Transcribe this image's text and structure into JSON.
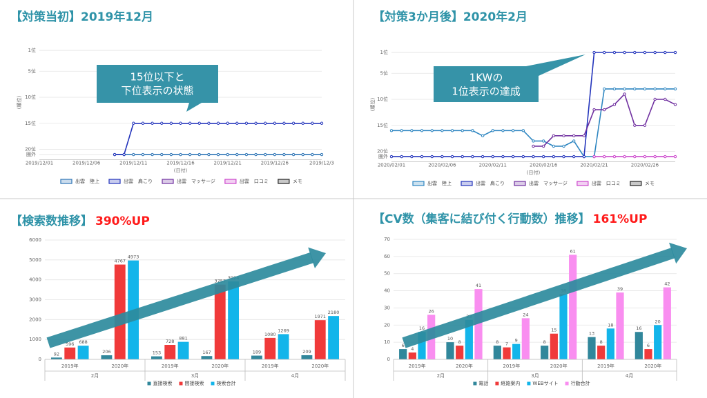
{
  "chart_data": [
    {
      "type": "line",
      "title": "【対策当初】2019年12月",
      "y_inverted": true,
      "ylabel": "(順位)",
      "xlabel": "(日付)",
      "annotation": [
        "15位以下と",
        "下位表示の状態"
      ],
      "categories": [
        "2019/12/01",
        null,
        null,
        null,
        null,
        "2019/12/06",
        null,
        null,
        null,
        null,
        "2019/12/11",
        null,
        null,
        null,
        null,
        "2019/12/16",
        null,
        null,
        null,
        null,
        "2019/12/21",
        null,
        null,
        null,
        null,
        "2019/12/26",
        null,
        null,
        null,
        null,
        "2019/12/3"
      ],
      "series": [
        {
          "name": "出雲　陸上",
          "color": "#2e75b6",
          "values": [
            null,
            null,
            null,
            null,
            null,
            null,
            null,
            null,
            21,
            21,
            21,
            21,
            21,
            21,
            21,
            21,
            21,
            21,
            21,
            21,
            21,
            21,
            21,
            21,
            21,
            21,
            21,
            21,
            21,
            21,
            21
          ]
        },
        {
          "name": "出雲　肩こり",
          "color": "#2233bb",
          "values": [
            null,
            null,
            null,
            null,
            null,
            null,
            null,
            null,
            21,
            21,
            15,
            15,
            15,
            15,
            15,
            15,
            15,
            15,
            15,
            15,
            15,
            15,
            15,
            15,
            15,
            15,
            15,
            15,
            15,
            15,
            15
          ]
        },
        {
          "name": "出雲　マッサージ",
          "color": "#7030a0",
          "values": [
            null,
            null,
            null,
            null,
            null,
            null,
            null,
            null,
            null,
            null,
            null,
            null,
            null,
            null,
            null,
            null,
            null,
            null,
            null,
            null,
            null,
            null,
            null,
            null,
            null,
            null,
            null,
            null,
            null,
            null,
            null
          ]
        },
        {
          "name": "出雲　口コミ",
          "color": "#cc44cc",
          "values": [
            null,
            null,
            null,
            null,
            null,
            null,
            null,
            null,
            null,
            null,
            null,
            null,
            null,
            null,
            null,
            null,
            null,
            null,
            null,
            null,
            null,
            null,
            null,
            null,
            null,
            null,
            null,
            null,
            null,
            null,
            null
          ]
        },
        {
          "name": "メモ",
          "color": "#222222",
          "values": [
            null,
            null,
            null,
            null,
            null,
            null,
            null,
            null,
            null,
            null,
            null,
            null,
            null,
            null,
            null,
            null,
            null,
            null,
            null,
            null,
            null,
            null,
            null,
            null,
            null,
            null,
            null,
            null,
            null,
            null,
            null
          ]
        }
      ],
      "ylim": [
        0,
        22
      ],
      "yticks": [
        {
          "value": 1,
          "label": "1位"
        },
        {
          "value": 5,
          "label": "5位"
        },
        {
          "value": 10,
          "label": "10位"
        },
        {
          "value": 15,
          "label": "15位"
        },
        {
          "value": 20,
          "label": "20位"
        },
        {
          "value": 21,
          "label": "圏外"
        }
      ],
      "grid": true
    },
    {
      "type": "line",
      "title": "【対策3か月後】2020年2月",
      "y_inverted": true,
      "ylabel": "(順位)",
      "xlabel": "(日付)",
      "annotation": [
        "1KWの",
        "1位表示の達成"
      ],
      "categories": [
        "2020/02/01",
        null,
        null,
        null,
        null,
        "2020/02/06",
        null,
        null,
        null,
        null,
        "2020/02/11",
        null,
        null,
        null,
        null,
        "2020/02/16",
        null,
        null,
        null,
        null,
        "2020/02/21",
        null,
        null,
        null,
        null,
        "2020/02/26",
        null,
        null,
        null
      ],
      "series": [
        {
          "name": "出雲　陸上",
          "color": "#2e86c1",
          "values": [
            16,
            16,
            16,
            16,
            16,
            16,
            16,
            16,
            16,
            17,
            16,
            16,
            16,
            16,
            18,
            18,
            19,
            19,
            18,
            21,
            21,
            8,
            8,
            8,
            8,
            8,
            8,
            8,
            8
          ]
        },
        {
          "name": "出雲　肩こり",
          "color": "#2233bb",
          "values": [
            21,
            21,
            21,
            21,
            21,
            21,
            21,
            21,
            21,
            21,
            21,
            21,
            21,
            21,
            21,
            21,
            21,
            21,
            21,
            21,
            1,
            1,
            1,
            1,
            1,
            1,
            1,
            1,
            1
          ]
        },
        {
          "name": "出雲　マッサージ",
          "color": "#7030a0",
          "values": [
            null,
            null,
            null,
            null,
            null,
            null,
            null,
            null,
            null,
            null,
            null,
            null,
            null,
            null,
            19,
            19,
            17,
            17,
            17,
            17,
            12,
            12,
            11,
            9,
            15,
            15,
            10,
            10,
            11
          ]
        },
        {
          "name": "出雲　口コミ",
          "color": "#cc44cc",
          "values": [
            null,
            null,
            null,
            null,
            null,
            null,
            null,
            null,
            null,
            null,
            null,
            null,
            null,
            null,
            null,
            null,
            null,
            null,
            null,
            null,
            21,
            21,
            21,
            21,
            21,
            21,
            21,
            21,
            21
          ]
        },
        {
          "name": "メモ",
          "color": "#222222",
          "values": [
            null,
            null,
            null,
            null,
            null,
            null,
            null,
            null,
            null,
            null,
            null,
            null,
            null,
            null,
            null,
            null,
            null,
            null,
            null,
            null,
            null,
            null,
            null,
            null,
            null,
            null,
            null,
            null,
            null
          ]
        }
      ],
      "ylim": [
        0,
        22
      ],
      "yticks": [
        {
          "value": 1,
          "label": "1位"
        },
        {
          "value": 5,
          "label": "5位"
        },
        {
          "value": 10,
          "label": "10位"
        },
        {
          "value": 15,
          "label": "15位"
        },
        {
          "value": 20,
          "label": "20位"
        },
        {
          "value": 21,
          "label": "圏外"
        }
      ],
      "grid": true
    },
    {
      "type": "bar",
      "title": "【検索数推移】",
      "highlight": "390%UP",
      "categories": [
        "2019年",
        "2020年",
        "2019年",
        "2020年",
        "2019年",
        "2020年"
      ],
      "groups": [
        "2月",
        "3月",
        "4月"
      ],
      "series": [
        {
          "name": "直接検索",
          "color": "#31879b",
          "values": [
            92,
            206,
            153,
            167,
            189,
            209
          ]
        },
        {
          "name": "間接検索",
          "color": "#f03a3a",
          "values": [
            596,
            4767,
            728,
            3757,
            1080,
            1971
          ]
        },
        {
          "name": "検索合計",
          "color": "#13b5ea",
          "values": [
            688,
            4973,
            881,
            3924,
            1269,
            2180
          ]
        }
      ],
      "ylim": [
        0,
        6000
      ],
      "yticks": [
        0,
        1000,
        2000,
        3000,
        4000,
        5000,
        6000
      ],
      "grid": true
    },
    {
      "type": "bar",
      "title": "【CV数（集客に結び付く行動数）推移】",
      "highlight": "161%UP",
      "categories": [
        "2019年",
        "2020年",
        "2019年",
        "2020年",
        "2019年",
        "2020年"
      ],
      "groups": [
        "2月",
        "3月",
        "4月"
      ],
      "series": [
        {
          "name": "電話",
          "color": "#31879b",
          "values": [
            6,
            10,
            8,
            8,
            13,
            16
          ]
        },
        {
          "name": "経路案内",
          "color": "#f03a3a",
          "values": [
            4,
            8,
            7,
            15,
            8,
            6
          ]
        },
        {
          "name": "WEBサイト",
          "color": "#13b5ea",
          "values": [
            16,
            23,
            9,
            38,
            18,
            20
          ]
        },
        {
          "name": "行動合計",
          "color": "#f98ef0",
          "values": [
            26,
            41,
            24,
            61,
            39,
            42
          ]
        }
      ],
      "ylim": [
        0,
        70
      ],
      "yticks": [
        0,
        10,
        20,
        30,
        40,
        50,
        60,
        70
      ],
      "grid": true
    }
  ]
}
